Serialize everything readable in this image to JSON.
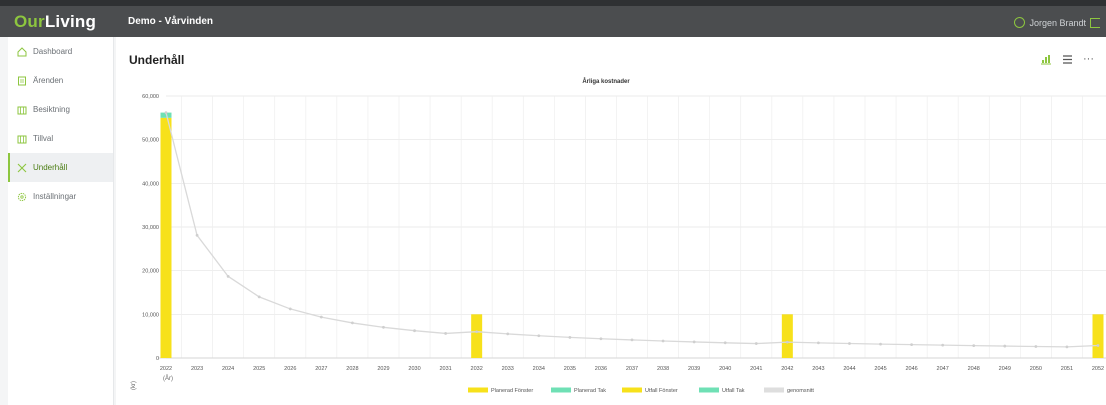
{
  "app": {
    "logo_our": "Our",
    "logo_living": "Living",
    "project": "Demo - Vårvinden",
    "user": "Jorgen Brandt"
  },
  "sidebar": {
    "items": [
      {
        "label": "Dashboard",
        "icon": "home-icon"
      },
      {
        "label": "Ärenden",
        "icon": "ticket-icon"
      },
      {
        "label": "Besiktning",
        "icon": "inspection-icon"
      },
      {
        "label": "Tillval",
        "icon": "options-icon"
      },
      {
        "label": "Underhåll",
        "icon": "tools-icon",
        "active": true
      },
      {
        "label": "Inställningar",
        "icon": "settings-icon"
      }
    ]
  },
  "main": {
    "title": "Underhåll",
    "more": "···"
  },
  "chart_data": {
    "type": "bar",
    "title": "Årliga kostnader",
    "ylabel": "(kr)",
    "xlabel": "(År)",
    "ylim": [
      0,
      60000
    ],
    "yticks": [
      "0",
      "10,000",
      "20,000",
      "30,000",
      "40,000",
      "50,000",
      "60,000"
    ],
    "categories": [
      "2022",
      "2023",
      "2024",
      "2025",
      "2026",
      "2027",
      "2028",
      "2029",
      "2030",
      "2031",
      "2032",
      "2033",
      "2034",
      "2035",
      "2036",
      "2037",
      "2038",
      "2039",
      "2040",
      "2041",
      "2042",
      "2043",
      "2044",
      "2045",
      "2046",
      "2047",
      "2048",
      "2049",
      "2050",
      "2051",
      "2052"
    ],
    "series": [
      {
        "name": "Planerad Fönster",
        "color": "#f7e11b",
        "values": [
          55000,
          0,
          0,
          0,
          0,
          0,
          0,
          0,
          0,
          0,
          10000,
          0,
          0,
          0,
          0,
          0,
          0,
          0,
          0,
          0,
          10000,
          0,
          0,
          0,
          0,
          0,
          0,
          0,
          0,
          0,
          10000
        ]
      },
      {
        "name": "Planerad Tak",
        "color": "#6fe0b5",
        "values": [
          1200,
          0,
          0,
          0,
          0,
          0,
          0,
          0,
          0,
          0,
          0,
          0,
          0,
          0,
          0,
          0,
          0,
          0,
          0,
          0,
          0,
          0,
          0,
          0,
          0,
          0,
          0,
          0,
          0,
          0,
          0
        ]
      },
      {
        "name": "Utfall Fönster",
        "color": "#f7e11b",
        "values": [
          0,
          0,
          0,
          0,
          0,
          0,
          0,
          0,
          0,
          0,
          0,
          0,
          0,
          0,
          0,
          0,
          0,
          0,
          0,
          0,
          0,
          0,
          0,
          0,
          0,
          0,
          0,
          0,
          0,
          0,
          0
        ]
      },
      {
        "name": "Utfall Tak",
        "color": "#6fe0b5",
        "values": [
          0,
          0,
          0,
          0,
          0,
          0,
          0,
          0,
          0,
          0,
          0,
          0,
          0,
          0,
          0,
          0,
          0,
          0,
          0,
          0,
          0,
          0,
          0,
          0,
          0,
          0,
          0,
          0,
          0,
          0,
          0
        ]
      },
      {
        "name": "genomsnitt",
        "color": "#dedede",
        "type": "line",
        "values": [
          56200,
          28100,
          18700,
          14000,
          11240,
          9370,
          8030,
          7030,
          6250,
          5620,
          6020,
          5520,
          5090,
          4730,
          4410,
          4140,
          3890,
          3680,
          3480,
          3310,
          3630,
          3470,
          3320,
          3180,
          3060,
          2940,
          2830,
          2730,
          2640,
          2550,
          2860
        ]
      }
    ],
    "legend_position": "bottom",
    "grid": true
  }
}
